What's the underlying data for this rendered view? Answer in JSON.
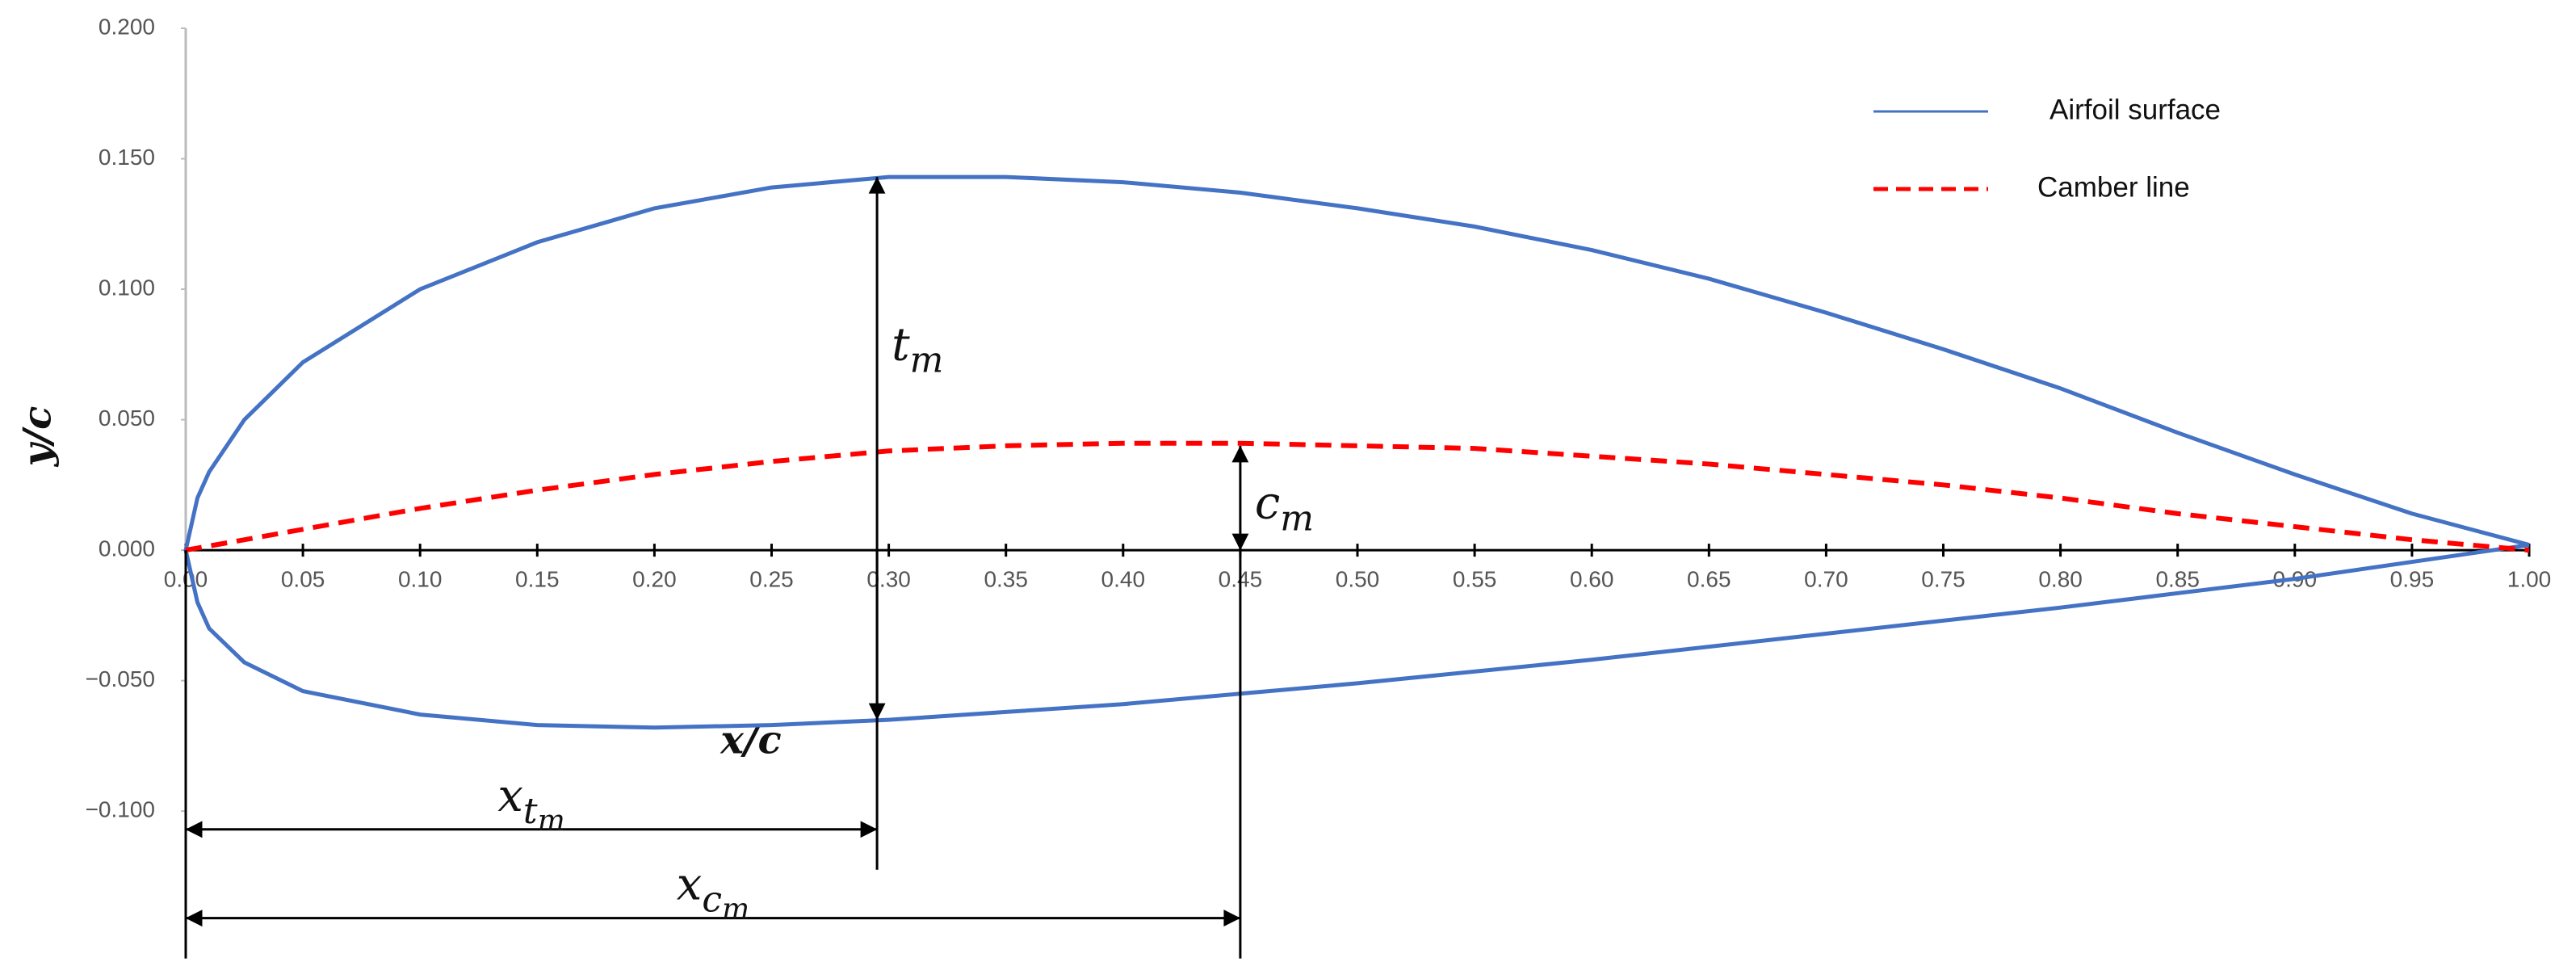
{
  "chart_data": {
    "type": "line",
    "xlabel": "x/c",
    "ylabel": "y/c",
    "xlim": [
      0,
      1
    ],
    "ylim": [
      -0.16,
      0.2
    ],
    "xticks": [
      {
        "value": 0,
        "label": "0.00"
      },
      {
        "value": 0.05,
        "label": "0.05"
      },
      {
        "value": 0.1,
        "label": "0.10"
      },
      {
        "value": 0.15,
        "label": "0.15"
      },
      {
        "value": 0.2,
        "label": "0.20"
      },
      {
        "value": 0.25,
        "label": "0.25"
      },
      {
        "value": 0.3,
        "label": "0.30"
      },
      {
        "value": 0.35,
        "label": "0.35"
      },
      {
        "value": 0.4,
        "label": "0.40"
      },
      {
        "value": 0.45,
        "label": "0.45"
      },
      {
        "value": 0.5,
        "label": "0.50"
      },
      {
        "value": 0.55,
        "label": "0.55"
      },
      {
        "value": 0.6,
        "label": "0.60"
      },
      {
        "value": 0.65,
        "label": "0.65"
      },
      {
        "value": 0.7,
        "label": "0.70"
      },
      {
        "value": 0.75,
        "label": "0.75"
      },
      {
        "value": 0.8,
        "label": "0.80"
      },
      {
        "value": 0.85,
        "label": "0.85"
      },
      {
        "value": 0.9,
        "label": "0.90"
      },
      {
        "value": 0.95,
        "label": "0.95"
      },
      {
        "value": 1,
        "label": "1.00"
      }
    ],
    "yticks": [
      {
        "value": -0.1,
        "label": "−0.100"
      },
      {
        "value": -0.05,
        "label": "−0.050"
      },
      {
        "value": 0,
        "label": "0.000"
      },
      {
        "value": 0.05,
        "label": "0.050"
      },
      {
        "value": 0.1,
        "label": "0.100"
      },
      {
        "value": 0.15,
        "label": "0.150"
      },
      {
        "value": 0.2,
        "label": "0.200"
      }
    ],
    "grid": false,
    "legend": "upper right",
    "series": [
      {
        "name": "Airfoil surface",
        "color": "#4472c4",
        "dashed": false,
        "x": [
          1,
          0.95,
          0.9,
          0.85,
          0.8,
          0.75,
          0.7,
          0.65,
          0.6,
          0.55,
          0.5,
          0.45,
          0.4,
          0.35,
          0.3,
          0.25,
          0.2,
          0.15,
          0.1,
          0.05,
          0.025,
          0.01,
          0.005,
          0,
          0.005,
          0.01,
          0.025,
          0.05,
          0.1,
          0.15,
          0.2,
          0.25,
          0.3,
          0.35,
          0.4,
          0.45,
          0.5,
          0.6,
          0.7,
          0.8,
          0.9,
          1
        ],
        "y": [
          0.002,
          0.014,
          0.029,
          0.045,
          0.062,
          0.077,
          0.091,
          0.104,
          0.115,
          0.124,
          0.131,
          0.137,
          0.141,
          0.143,
          0.143,
          0.139,
          0.131,
          0.118,
          0.1,
          0.072,
          0.05,
          0.03,
          0.02,
          0,
          -0.02,
          -0.03,
          -0.043,
          -0.054,
          -0.063,
          -0.067,
          -0.068,
          -0.067,
          -0.065,
          -0.062,
          -0.059,
          -0.055,
          -0.051,
          -0.042,
          -0.032,
          -0.022,
          -0.011,
          0.002
        ]
      },
      {
        "name": "Camber line",
        "color": "#ff0000",
        "dashed": true,
        "x": [
          0,
          0.05,
          0.1,
          0.15,
          0.2,
          0.25,
          0.3,
          0.35,
          0.4,
          0.45,
          0.5,
          0.55,
          0.6,
          0.65,
          0.7,
          0.75,
          0.8,
          0.85,
          0.9,
          0.95,
          1
        ],
        "y": [
          0,
          0.008,
          0.016,
          0.023,
          0.029,
          0.034,
          0.038,
          0.04,
          0.041,
          0.041,
          0.04,
          0.039,
          0.036,
          0.033,
          0.029,
          0.025,
          0.02,
          0.014,
          0.009,
          0.004,
          0
        ]
      }
    ],
    "annotations": [
      {
        "base": "t",
        "sub": "m",
        "x": [
          0.295,
          0.295
        ],
        "y": [
          0.143,
          -0.065
        ]
      },
      {
        "base": "c",
        "sub": "m",
        "x": [
          0.45,
          0.45
        ],
        "y": [
          0,
          0.04
        ]
      },
      {
        "base": "x",
        "sub": "t",
        "subsub": "m",
        "x": [
          0,
          0.295
        ],
        "y": [
          -0.107,
          -0.107
        ]
      },
      {
        "base": "x",
        "sub": "c",
        "subsub": "m",
        "x": [
          0,
          0.45
        ],
        "y": [
          -0.141,
          -0.141
        ]
      }
    ]
  }
}
